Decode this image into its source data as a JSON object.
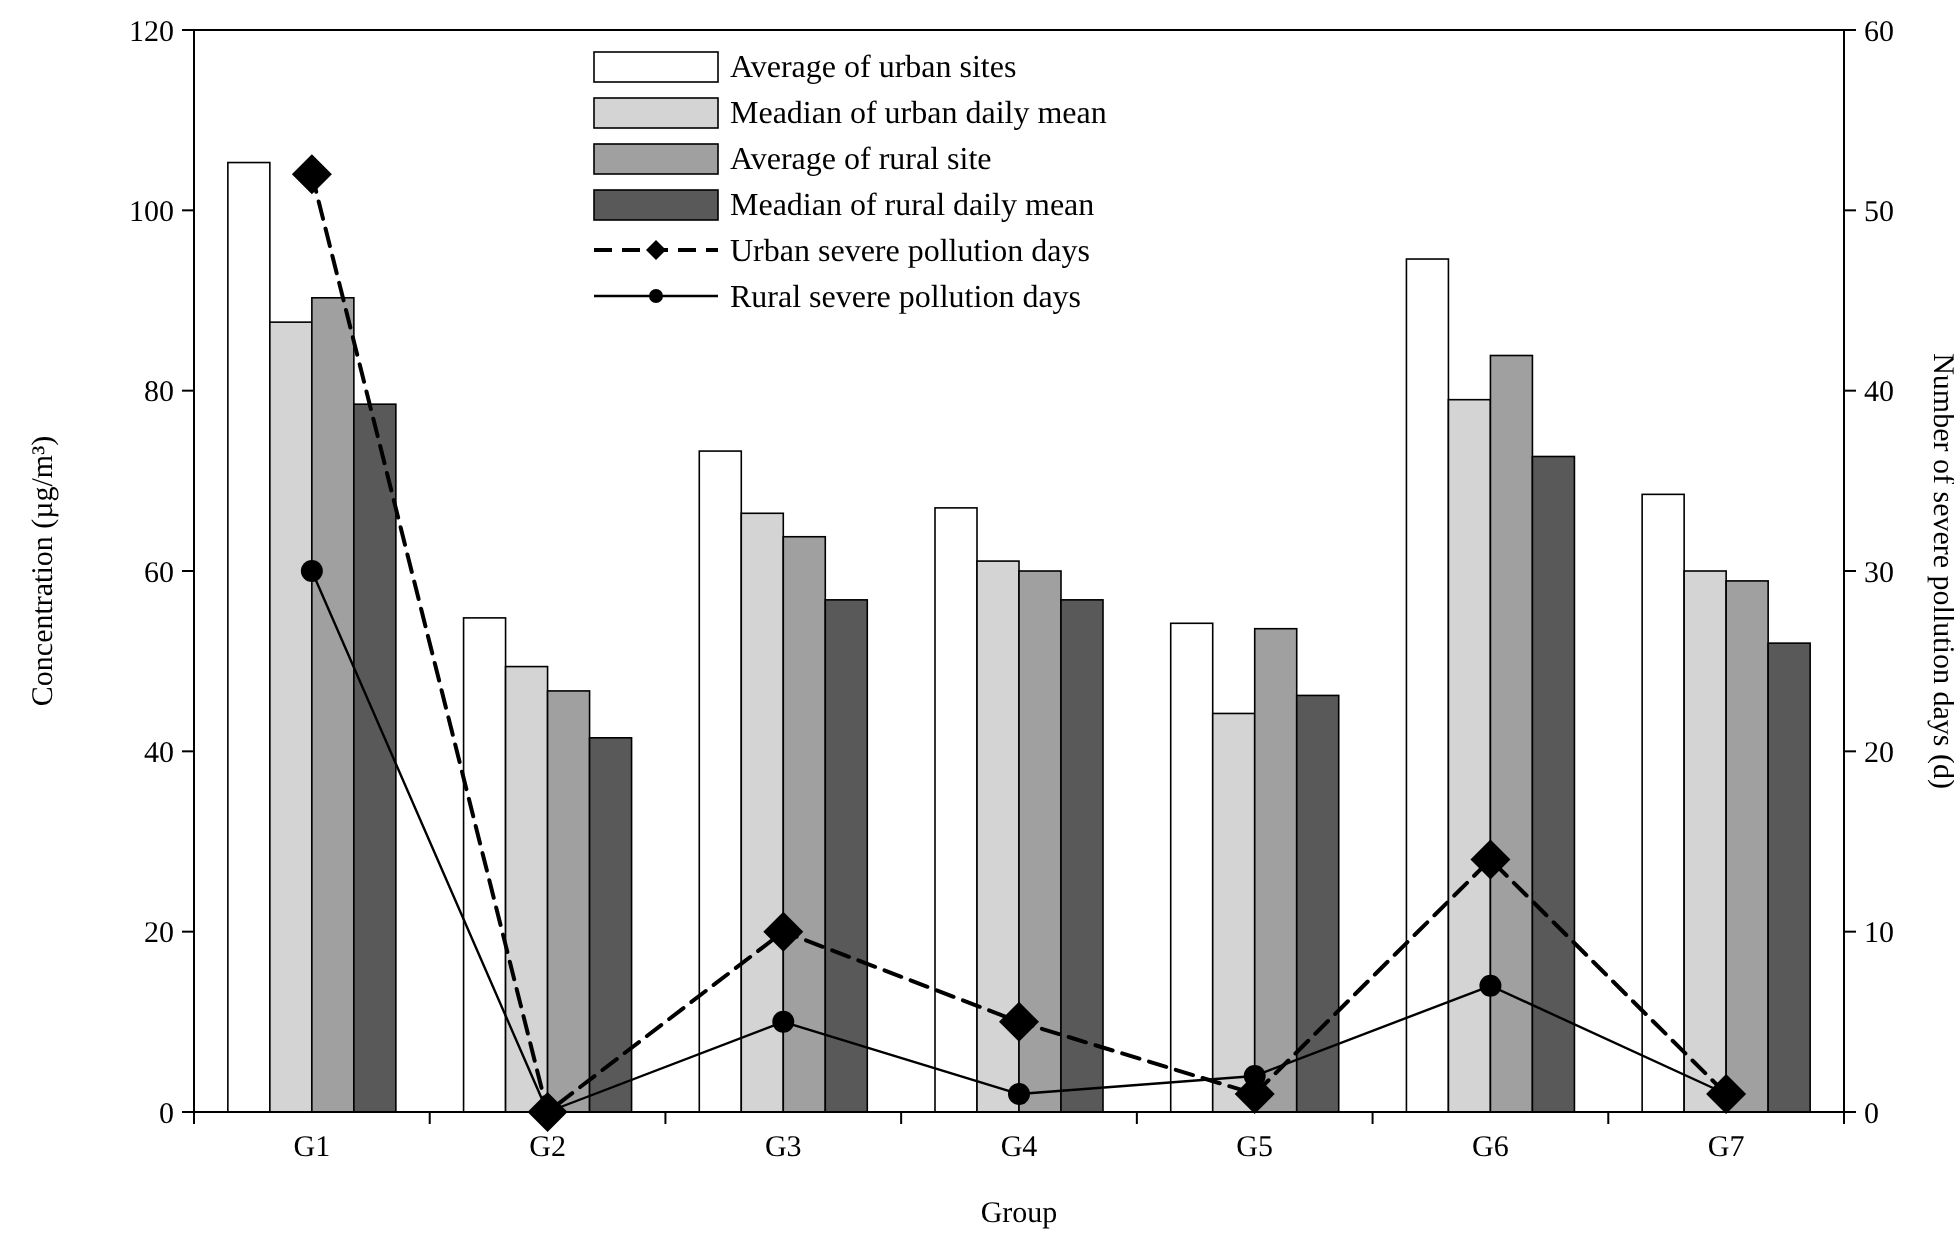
{
  "chart_data": {
    "type": "bar",
    "xlabel": "Group",
    "ylabel": "Concentration (µg/m³)",
    "y2label": "Number of severe pollution days (d)",
    "categories": [
      "G1",
      "G2",
      "G3",
      "G4",
      "G5",
      "G6",
      "G7"
    ],
    "ylim": [
      0,
      120
    ],
    "yticks": [
      0,
      20,
      40,
      60,
      80,
      100,
      120
    ],
    "y2lim": [
      0,
      60
    ],
    "y2ticks": [
      0,
      10,
      20,
      30,
      40,
      50,
      60
    ],
    "legend": "top",
    "grid": false,
    "series": [
      {
        "name": "Average of urban sites",
        "color": "#ffffff",
        "values": [
          105.3,
          54.8,
          73.3,
          67,
          54.2,
          94.6,
          68.5
        ]
      },
      {
        "name": "Meadian of urban daily mean",
        "color": "#d4d4d4",
        "values": [
          87.6,
          49.4,
          66.4,
          61.1,
          44.2,
          79,
          60
        ]
      },
      {
        "name": "Average of rural site",
        "color": "#a0a0a0",
        "values": [
          90.3,
          46.7,
          63.8,
          60,
          53.6,
          83.9,
          58.9
        ]
      },
      {
        "name": "Meadian of rural daily mean",
        "color": "#595959",
        "values": [
          78.5,
          41.5,
          56.8,
          56.8,
          46.2,
          72.7,
          52
        ]
      },
      {
        "name": "Urban severe pollution days",
        "type": "line",
        "axis": "y2",
        "color": "#000000",
        "marker": "diamond",
        "line_style": "dashed",
        "values": [
          52,
          0,
          10,
          5,
          1,
          14,
          1
        ]
      },
      {
        "name": "Rural severe pollution days",
        "type": "line",
        "axis": "y2",
        "color": "#000000",
        "marker": "circle",
        "line_style": "solid",
        "values": [
          30,
          0,
          5,
          1,
          2,
          7,
          1
        ]
      }
    ]
  }
}
